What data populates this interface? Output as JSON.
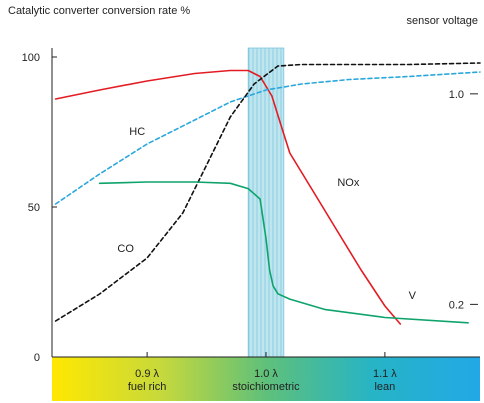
{
  "chart_data": {
    "type": "line",
    "ylabel": "Catalytic converter conversion rate %",
    "ylabel_right": "sensor voltage",
    "xlim": [
      0.82,
      1.18
    ],
    "ylim": [
      0,
      100
    ],
    "y2lim": [
      0,
      1.14
    ],
    "yticks": [
      {
        "value": 0,
        "label": "0"
      },
      {
        "value": 50,
        "label": "50"
      },
      {
        "value": 100,
        "label": "100"
      }
    ],
    "y2ticks": [
      {
        "value": 1.0,
        "label": "1.0"
      },
      {
        "value": 0.2,
        "label": "0.2"
      }
    ],
    "x_band_labels": [
      {
        "x": 0.9,
        "lines": [
          "0.9 λ",
          "fuel rich"
        ]
      },
      {
        "x": 1.0,
        "lines": [
          "1.0 λ",
          "stoichiometric"
        ]
      },
      {
        "x": 1.1,
        "lines": [
          "1.1 λ",
          "lean"
        ]
      }
    ],
    "x_band_gradient": [
      "#ffe800",
      "#c8d93a",
      "#5fc07a",
      "#26b4c6",
      "#22a8e6"
    ],
    "stoichiometric_window": {
      "x_range": [
        0.985,
        1.015
      ],
      "color": "#9fd6e6"
    },
    "series": [
      {
        "name": "NOx",
        "axis": "left",
        "color": "#e31c23",
        "dash": "solid",
        "label": {
          "text": "NOx",
          "x": 1.06,
          "y": 57
        },
        "x": [
          0.823,
          0.86,
          0.9,
          0.94,
          0.97,
          0.985,
          0.995,
          1.005,
          1.012,
          1.02,
          1.04,
          1.06,
          1.08,
          1.1,
          1.113
        ],
        "y": [
          86,
          89,
          92,
          94.5,
          95.5,
          95.5,
          93.5,
          87,
          78,
          68,
          55,
          42,
          29,
          17,
          11
        ]
      },
      {
        "name": "HC",
        "axis": "left",
        "color": "#2aa8dc",
        "dash": "dashed",
        "label": {
          "text": "HC",
          "x": 0.885,
          "y": 74
        },
        "x": [
          0.823,
          0.86,
          0.9,
          0.94,
          0.97,
          1.0,
          1.03,
          1.07,
          1.12,
          1.18
        ],
        "y": [
          51,
          61,
          71,
          79,
          85,
          89,
          91,
          92.5,
          93.5,
          95
        ]
      },
      {
        "name": "CO",
        "axis": "left",
        "color": "#111111",
        "dash": "dashed",
        "label": {
          "text": "CO",
          "x": 0.875,
          "y": 35
        },
        "x": [
          0.823,
          0.86,
          0.9,
          0.93,
          0.95,
          0.97,
          0.99,
          1.01,
          1.03,
          1.06,
          1.12,
          1.18
        ],
        "y": [
          12,
          21,
          33,
          48,
          64,
          80,
          91,
          97,
          97.5,
          97.5,
          97.5,
          98
        ]
      },
      {
        "name": "V",
        "axis": "right",
        "color": "#0da36b",
        "dash": "solid",
        "label": {
          "text": "V",
          "x": 1.12,
          "y2": 0.22
        },
        "x": [
          0.86,
          0.9,
          0.94,
          0.97,
          0.985,
          0.995,
          1.0,
          1.003,
          1.006,
          1.01,
          1.02,
          1.05,
          1.1,
          1.17
        ],
        "y2": [
          0.66,
          0.665,
          0.665,
          0.66,
          0.64,
          0.6,
          0.45,
          0.33,
          0.27,
          0.24,
          0.22,
          0.18,
          0.15,
          0.13
        ]
      }
    ]
  }
}
